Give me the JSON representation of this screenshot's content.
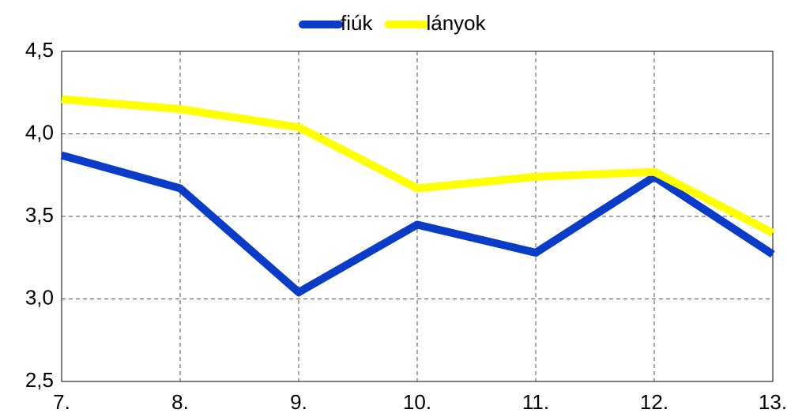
{
  "chart_data": {
    "type": "line",
    "categories": [
      "7.",
      "8.",
      "9.",
      "10.",
      "11.",
      "12.",
      "13."
    ],
    "series": [
      {
        "name": "fiúk",
        "color": "#0a3cc8",
        "values": [
          3.87,
          3.67,
          3.04,
          3.45,
          3.28,
          3.74,
          3.27
        ]
      },
      {
        "name": "lányok",
        "color": "#ffff00",
        "values": [
          4.21,
          4.15,
          4.04,
          3.67,
          3.74,
          3.77,
          3.4
        ]
      }
    ],
    "ylim": [
      2.5,
      4.5
    ],
    "yticks": [
      {
        "value": 2.5,
        "label": "2,5"
      },
      {
        "value": 3.0,
        "label": "3,0"
      },
      {
        "value": 3.5,
        "label": "3,5"
      },
      {
        "value": 4.0,
        "label": "4,0"
      },
      {
        "value": 4.5,
        "label": "4,5"
      }
    ],
    "grid": true,
    "legend": "top"
  }
}
